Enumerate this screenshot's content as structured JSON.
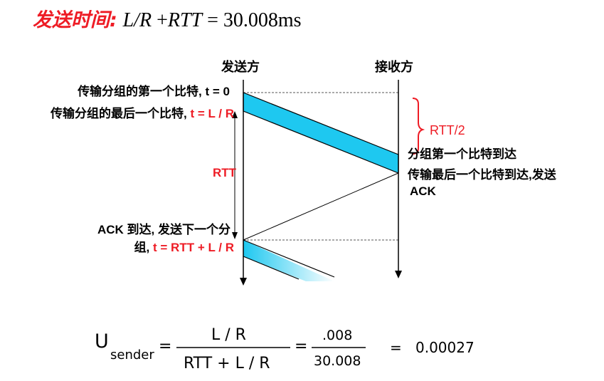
{
  "title": {
    "label_cn": "发送时间:",
    "formula": {
      "l_over_r": "L/R",
      "plus": " +",
      "rtt": "RTT",
      "equals": " = ",
      "value": "30.008ms"
    }
  },
  "diagram": {
    "sender_header": "发送方",
    "receiver_header": "接收方",
    "t0_label": "传输分组的第一个比特, t = 0",
    "tLR_label_black": "传输分组的最后一个比特, ",
    "tLR_label_red": "t = L / R",
    "rtt_label": "RTT",
    "rtt_half_label": "RTT/2",
    "first_bit_arrives": "分组第一个比特到达",
    "last_bit_arrives_line1": "传输最后一个比特到达,发送",
    "last_bit_arrives_line2": "ACK",
    "ack_line1": "ACK 到达, 发送下一个分",
    "ack_line2_black": "组, ",
    "ack_line2_red": "t = RTT + L / R",
    "colors": {
      "packet_fill": "#1ec8f0",
      "accent_red": "#ee1c25",
      "brace_red": "#ee1c25"
    }
  },
  "equation": {
    "u": "U",
    "sub": "sender",
    "eq1": "=",
    "num1": "L / R",
    "den1": "RTT + L / R",
    "eq2": "=",
    "num2": ".008",
    "den2": "30.008",
    "eq3": "=",
    "result": "0.00027"
  }
}
